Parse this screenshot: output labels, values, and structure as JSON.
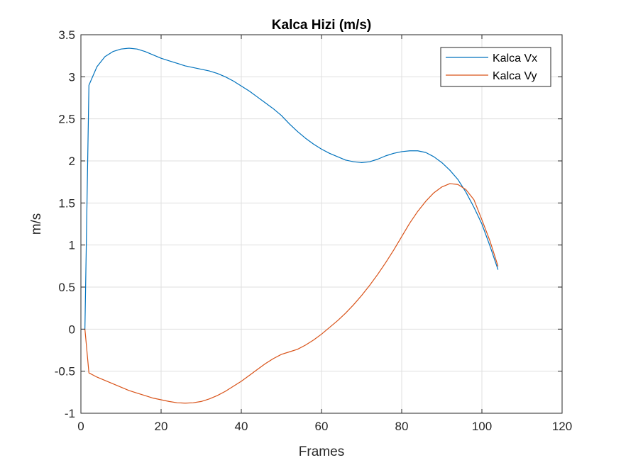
{
  "chart_data": {
    "type": "line",
    "title": "Kalca Hizi (m/s)",
    "xlabel": "Frames",
    "ylabel": "m/s",
    "xlim": [
      0,
      120
    ],
    "ylim": [
      -1,
      3.5
    ],
    "xticks": [
      0,
      20,
      40,
      60,
      80,
      100,
      120
    ],
    "yticks": [
      -1,
      -0.5,
      0,
      0.5,
      1,
      1.5,
      2,
      2.5,
      3,
      3.5
    ],
    "xtick_labels": [
      "0",
      "20",
      "40",
      "60",
      "80",
      "100",
      "120"
    ],
    "ytick_labels": [
      "-1",
      "-0.5",
      "0",
      "0.5",
      "1",
      "1.5",
      "2",
      "2.5",
      "3",
      "3.5"
    ],
    "grid": true,
    "legend_position": "top-right",
    "series": [
      {
        "name": "Kalca Vx",
        "color": "#0072BD",
        "x": [
          1,
          2,
          4,
          6,
          8,
          10,
          12,
          14,
          16,
          18,
          20,
          22,
          24,
          26,
          28,
          30,
          32,
          34,
          36,
          38,
          40,
          42,
          44,
          46,
          48,
          50,
          52,
          54,
          56,
          58,
          60,
          62,
          64,
          66,
          68,
          70,
          72,
          74,
          76,
          78,
          80,
          82,
          84,
          86,
          88,
          90,
          92,
          94,
          96,
          98,
          100,
          102,
          104
        ],
        "y": [
          0,
          2.9,
          3.12,
          3.24,
          3.3,
          3.33,
          3.34,
          3.33,
          3.3,
          3.26,
          3.22,
          3.19,
          3.16,
          3.13,
          3.11,
          3.09,
          3.07,
          3.04,
          3.0,
          2.95,
          2.89,
          2.83,
          2.76,
          2.69,
          2.62,
          2.54,
          2.44,
          2.35,
          2.27,
          2.2,
          2.14,
          2.09,
          2.05,
          2.01,
          1.99,
          1.98,
          1.99,
          2.02,
          2.06,
          2.09,
          2.11,
          2.12,
          2.12,
          2.1,
          2.05,
          1.98,
          1.89,
          1.78,
          1.63,
          1.45,
          1.25,
          0.99,
          0.71
        ]
      },
      {
        "name": "Kalca Vy",
        "color": "#D95319",
        "x": [
          1,
          2,
          4,
          6,
          8,
          10,
          12,
          14,
          16,
          18,
          20,
          22,
          24,
          26,
          28,
          30,
          32,
          34,
          36,
          38,
          40,
          42,
          44,
          46,
          48,
          50,
          52,
          54,
          56,
          58,
          60,
          62,
          64,
          66,
          68,
          70,
          72,
          74,
          76,
          78,
          80,
          82,
          84,
          86,
          88,
          90,
          92,
          94,
          96,
          98,
          100,
          102,
          104
        ],
        "y": [
          0,
          -0.52,
          -0.57,
          -0.61,
          -0.65,
          -0.69,
          -0.73,
          -0.76,
          -0.79,
          -0.82,
          -0.84,
          -0.86,
          -0.875,
          -0.88,
          -0.875,
          -0.86,
          -0.83,
          -0.79,
          -0.74,
          -0.68,
          -0.62,
          -0.55,
          -0.48,
          -0.41,
          -0.35,
          -0.3,
          -0.27,
          -0.24,
          -0.19,
          -0.13,
          -0.06,
          0.02,
          0.1,
          0.19,
          0.29,
          0.4,
          0.52,
          0.65,
          0.79,
          0.94,
          1.1,
          1.26,
          1.4,
          1.52,
          1.62,
          1.69,
          1.73,
          1.72,
          1.66,
          1.54,
          1.3,
          1.05,
          0.75
        ]
      }
    ]
  }
}
